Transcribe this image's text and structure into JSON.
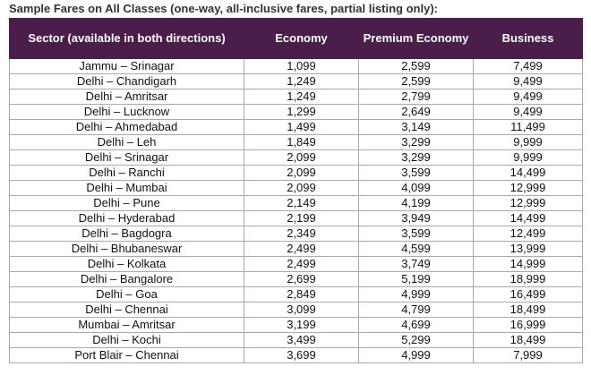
{
  "title": "Sample Fares on All Classes (one-way, all-inclusive fares, partial listing only):",
  "table": {
    "header": [
      "Sector (available in both directions)",
      "Economy",
      "Premium Economy",
      "Business"
    ],
    "rows": [
      [
        "Jammu – Srinagar",
        "1,099",
        "2,599",
        "7,499"
      ],
      [
        "Delhi – Chandigarh",
        "1,249",
        "2,599",
        "9,499"
      ],
      [
        "Delhi – Amritsar",
        "1,249",
        "2,799",
        "9,499"
      ],
      [
        "Delhi – Lucknow",
        "1,299",
        "2,649",
        "9,499"
      ],
      [
        "Delhi – Ahmedabad",
        "1,499",
        "3,149",
        "11,499"
      ],
      [
        "Delhi – Leh",
        "1,849",
        "3,299",
        "9,999"
      ],
      [
        "Delhi – Srinagar",
        "2,099",
        "3,299",
        "9,999"
      ],
      [
        "Delhi – Ranchi",
        "2,099",
        "3,599",
        "14,499"
      ],
      [
        "Delhi – Mumbai",
        "2,099",
        "4,099",
        "12,999"
      ],
      [
        "Delhi – Pune",
        "2,149",
        "4,199",
        "12,999"
      ],
      [
        "Delhi – Hyderabad",
        "2,199",
        "3,949",
        "14,499"
      ],
      [
        "Delhi – Bagdogra",
        "2,349",
        "3,599",
        "12,499"
      ],
      [
        "Delhi – Bhubaneswar",
        "2,499",
        "4,599",
        "13,999"
      ],
      [
        "Delhi – Kolkata",
        "2,499",
        "3,749",
        "14,999"
      ],
      [
        "Delhi – Bangalore",
        "2,699",
        "5,199",
        "18,999"
      ],
      [
        "Delhi – Goa",
        "2,849",
        "4,999",
        "16,499"
      ],
      [
        "Delhi – Chennai",
        "3,099",
        "4,799",
        "18,499"
      ],
      [
        "Mumbai – Amritsar",
        "3,199",
        "4,699",
        "16,999"
      ],
      [
        "Delhi – Kochi",
        "3,499",
        "5,299",
        "18,499"
      ],
      [
        "Port Blair – Chennai",
        "3,699",
        "4,999",
        "7,999"
      ]
    ]
  }
}
